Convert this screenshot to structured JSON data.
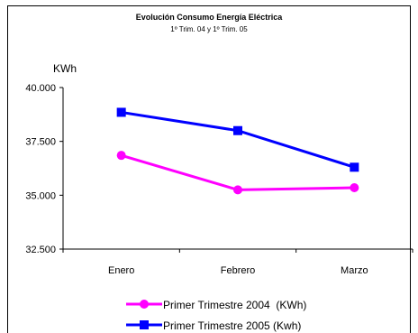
{
  "chart_data": {
    "type": "line",
    "title": "Evolución Consumo Energía Eléctrica",
    "subtitle": "1º Trim. 04 y 1º Trim. 05",
    "ylabel": "KWh",
    "categories": [
      "Enero",
      "Febrero",
      "Marzo"
    ],
    "ylim": [
      32500,
      40000
    ],
    "yticks": [
      32500,
      35000,
      37500,
      40000
    ],
    "ytick_labels": [
      "32.500",
      "35.000",
      "37.500",
      "40.000"
    ],
    "grid": false,
    "legend_position": "bottom",
    "series": [
      {
        "name": "Primer Trimestre 2004  (KWh)",
        "values": [
          36850,
          35250,
          35350
        ],
        "color": "#ff00ff",
        "marker": "circle"
      },
      {
        "name": "Primer Trimestre 2005 (Kwh)",
        "values": [
          38850,
          38000,
          36300
        ],
        "color": "#0000ff",
        "marker": "square"
      }
    ]
  }
}
